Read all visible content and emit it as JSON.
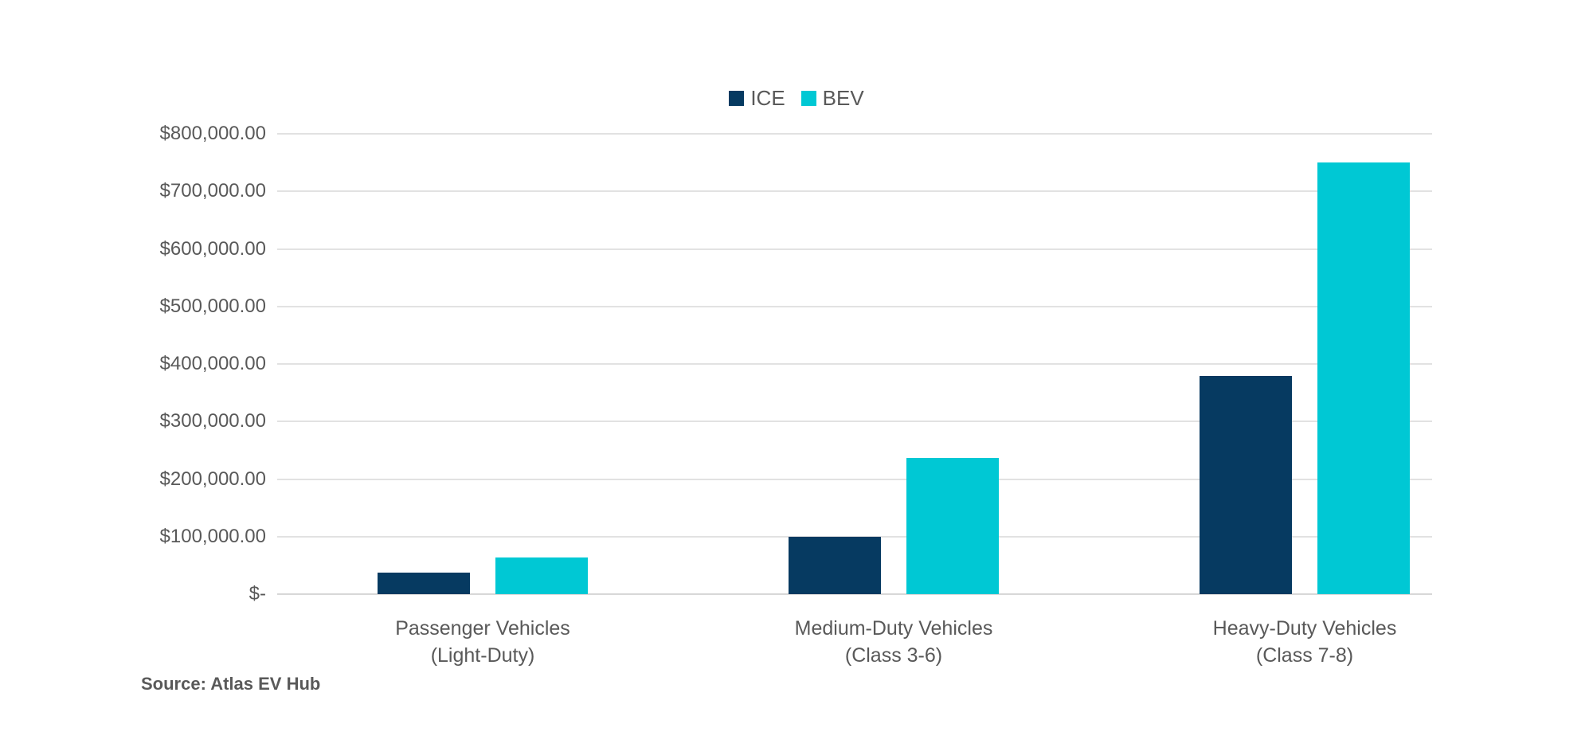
{
  "source_note": "Source: Atlas EV Hub",
  "colors": {
    "background": "#ffffff",
    "text": "#595959",
    "gridline": "#e2e2e2",
    "axis_line": "#d8d8d8",
    "ice": "#063a61",
    "bev": "#00c8d4"
  },
  "chart_data": {
    "type": "bar",
    "title": "",
    "legend_position": "top-center",
    "grid": "horizontal",
    "y_axis": {
      "min": 0,
      "max": 800000,
      "tick_step": 100000,
      "ticks": [
        {
          "value": 800000,
          "label": "$800,000.00"
        },
        {
          "value": 700000,
          "label": "$700,000.00"
        },
        {
          "value": 600000,
          "label": "$600,000.00"
        },
        {
          "value": 500000,
          "label": "$500,000.00"
        },
        {
          "value": 400000,
          "label": "$400,000.00"
        },
        {
          "value": 300000,
          "label": "$300,000.00"
        },
        {
          "value": 200000,
          "label": "$200,000.00"
        },
        {
          "value": 100000,
          "label": "$100,000.00"
        },
        {
          "value": 0,
          "label": "$-"
        }
      ]
    },
    "categories": [
      {
        "name": "Passenger Vehicles (Light-Duty)",
        "line1": "Passenger Vehicles",
        "line2": "(Light-Duty)"
      },
      {
        "name": "Medium-Duty Vehicles (Class 3-6)",
        "line1": "Medium-Duty Vehicles",
        "line2": "(Class 3-6)"
      },
      {
        "name": "Heavy-Duty Vehicles (Class 7-8)",
        "line1": "Heavy-Duty Vehicles",
        "line2": "(Class 7-8)"
      }
    ],
    "series": [
      {
        "name": "ICE",
        "color": "#063a61",
        "values": [
          38000,
          100000,
          379000
        ]
      },
      {
        "name": "BEV",
        "color": "#00c8d4",
        "values": [
          64000,
          236000,
          750000
        ]
      }
    ]
  }
}
